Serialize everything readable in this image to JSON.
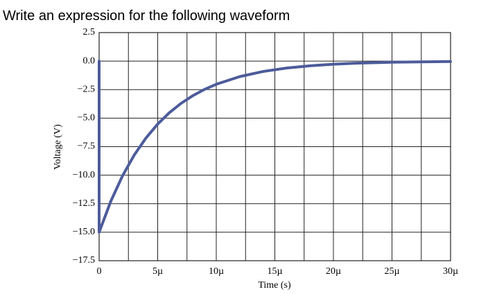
{
  "chart_data": {
    "type": "line",
    "title": "Write an expression for the following waveform",
    "xlabel": "Time (s)",
    "ylabel": "Voltage (V)",
    "x": [
      0,
      0,
      1e-06,
      2e-06,
      3e-06,
      4e-06,
      5e-06,
      6e-06,
      7e-06,
      8e-06,
      9e-06,
      1e-05,
      1.2e-05,
      1.4e-05,
      1.6e-05,
      1.8e-05,
      2e-05,
      2.2e-05,
      2.5e-05,
      2.8e-05,
      3e-05
    ],
    "values": [
      0,
      -15,
      -12.28,
      -10.05,
      -8.23,
      -6.74,
      -5.52,
      -4.52,
      -3.7,
      -3.03,
      -2.48,
      -2.03,
      -1.36,
      -0.91,
      -0.61,
      -0.41,
      -0.27,
      -0.18,
      -0.1,
      -0.06,
      -0.04
    ],
    "color": "#4c5b9a",
    "xlim": [
      0,
      3e-05
    ],
    "xticks": [
      0,
      {
        "value": 5e-06,
        "label": "5µ"
      },
      {
        "value": 1e-05,
        "label": "10µ"
      },
      {
        "value": 1.5e-05,
        "label": "15µ"
      },
      {
        "value": 2e-05,
        "label": "20µ"
      },
      {
        "value": 2.5e-05,
        "label": "25µ"
      },
      {
        "value": 3e-05,
        "label": "30µ"
      }
    ],
    "ylim": [
      -17.5,
      2.5
    ],
    "yticks": [
      2.5,
      {
        "value": 0,
        "label": "0.0"
      },
      {
        "value": -2.5,
        "label": "−2.5"
      },
      {
        "value": -5,
        "label": "−5.0"
      },
      {
        "value": -7.5,
        "label": "−7.5"
      },
      {
        "value": -10,
        "label": "−10.0"
      },
      {
        "value": -12.5,
        "label": "−12.5"
      },
      {
        "value": -15,
        "label": "−15.0"
      },
      {
        "value": -17.5,
        "label": "−17.5"
      }
    ],
    "grid": true
  }
}
